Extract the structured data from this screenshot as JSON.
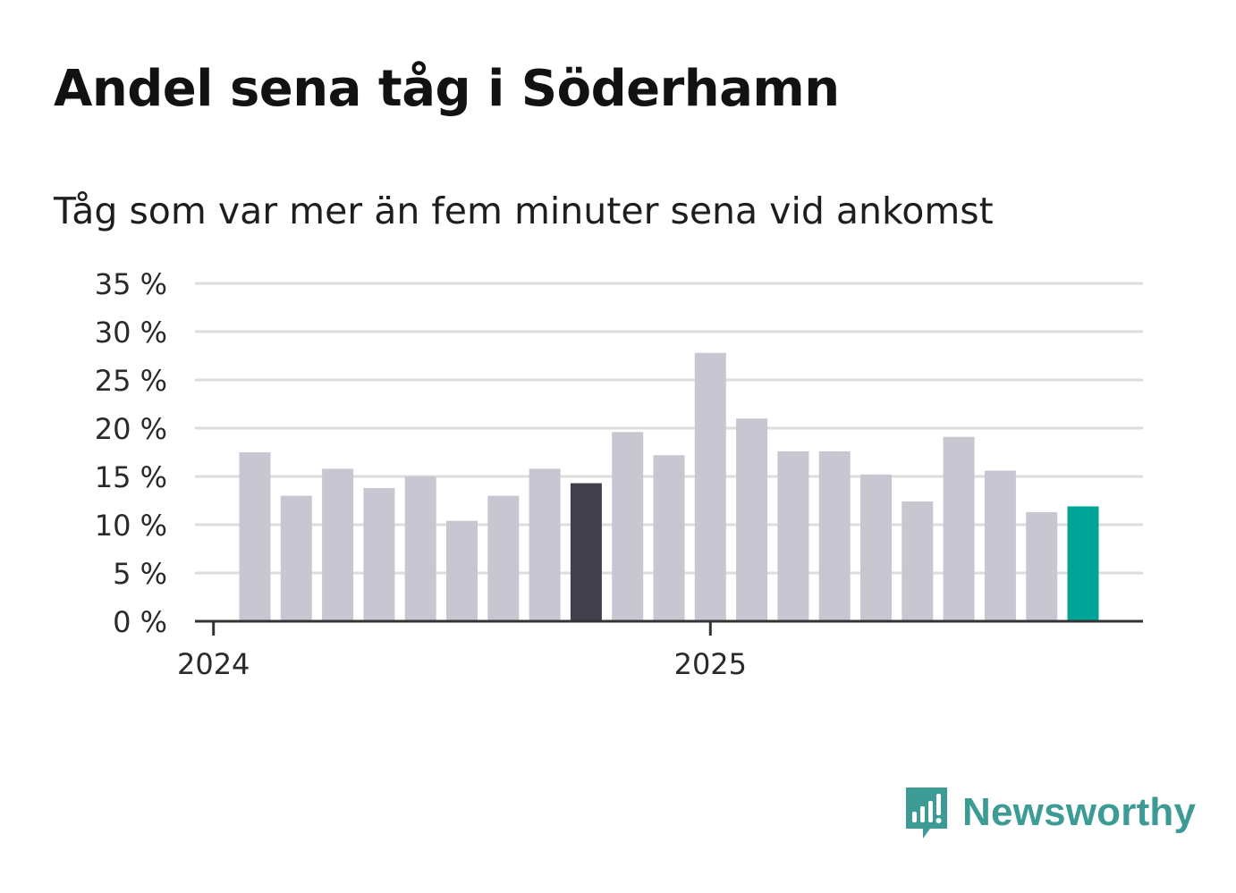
{
  "title": "Andel sena tåg i Söderhamn",
  "subtitle": "Tåg som var mer än fem minuter sena vid ankomst",
  "brand": {
    "name": "Newsworthy",
    "icon": "bar-chart-speech-bubble-icon",
    "color": "#3d9b95"
  },
  "chart_data": {
    "type": "bar",
    "categories": [
      "2024-02",
      "2024-03",
      "2024-04",
      "2024-05",
      "2024-06",
      "2024-07",
      "2024-08",
      "2024-09",
      "2024-10",
      "2024-11",
      "2024-12",
      "2025-01",
      "2025-02",
      "2025-03",
      "2025-04",
      "2025-05",
      "2025-06",
      "2025-07",
      "2025-08",
      "2025-09",
      "2025-10"
    ],
    "values": [
      17.5,
      13.0,
      15.8,
      13.8,
      15.0,
      10.4,
      13.0,
      15.8,
      14.3,
      19.6,
      17.2,
      27.8,
      21.0,
      17.6,
      17.6,
      15.2,
      12.4,
      19.1,
      15.6,
      11.3,
      11.9
    ],
    "x_ticks": [
      {
        "label": "2024",
        "date": "2024-01"
      },
      {
        "label": "2025",
        "date": "2025-01"
      }
    ],
    "y_ticks": [
      "0 %",
      "5 %",
      "10 %",
      "15 %",
      "20 %",
      "25 %",
      "30 %",
      "35 %"
    ],
    "ylim": [
      0,
      35
    ],
    "grid": true,
    "colors": {
      "default": "#c8c7d1",
      "previous_year": "#42404b",
      "latest": "#00a497",
      "axis": "#333333",
      "grid": "#dddddd"
    },
    "highlight": {
      "previous_year_index": 8,
      "latest_index": 20
    }
  }
}
